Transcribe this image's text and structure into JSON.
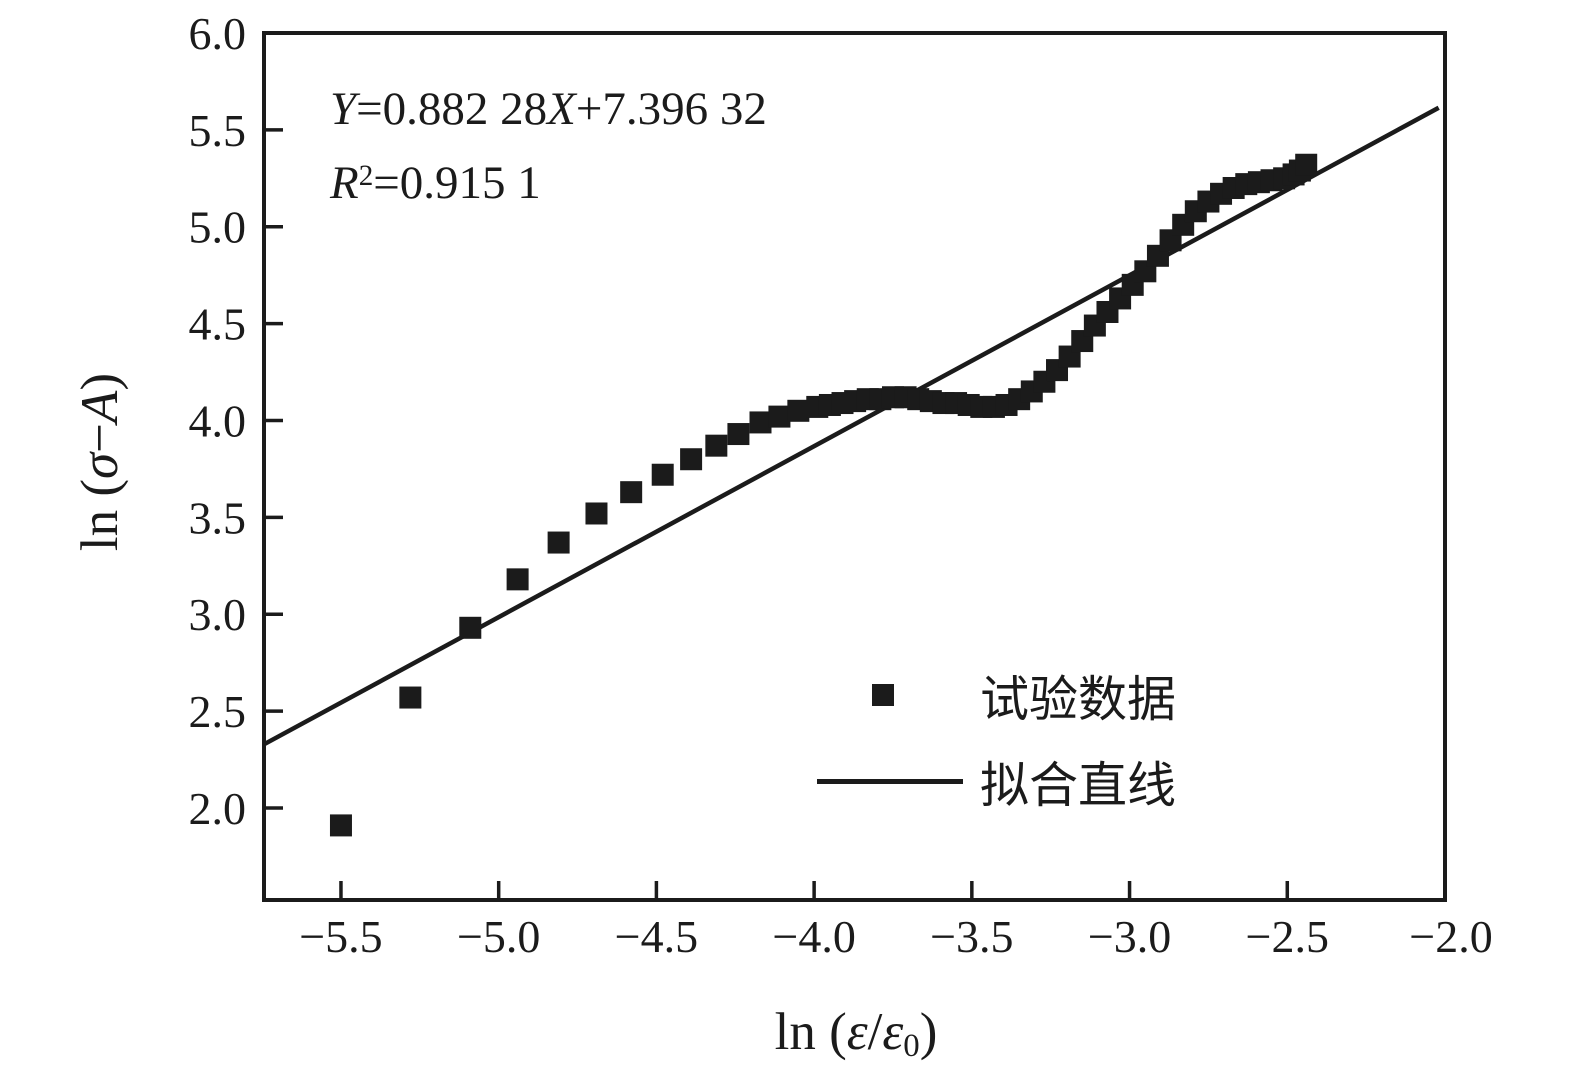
{
  "figure": {
    "background_color": "#ffffff",
    "ink_color": "#1b1b1b"
  },
  "annotation": {
    "equation_parts": [
      "Y",
      "=0.882 28",
      "X",
      "+7.396 32"
    ],
    "r2_parts": [
      "R",
      "2",
      "=0.915 1"
    ]
  },
  "axis_labels": {
    "y_parts": [
      "ln (",
      "σ",
      "−",
      "A",
      ")"
    ],
    "x_parts": [
      "ln (",
      "ε",
      "/",
      "ε",
      "0",
      ")"
    ]
  },
  "legend": {
    "items": [
      {
        "marker": "square",
        "label": "试验数据"
      },
      {
        "marker": "line",
        "label": "拟合直线"
      }
    ]
  },
  "chart_data": {
    "type": "scatter",
    "title": "",
    "xlabel": "ln (ε/ε0)",
    "ylabel": "ln (σ−A)",
    "xlim": [
      -5.744,
      -2.0
    ],
    "ylim": [
      1.525,
      6.0
    ],
    "grid": false,
    "legend_position": "inside lower-right",
    "annotation_text": [
      "Y=0.882 28X+7.396 32",
      "R²=0.915 1"
    ],
    "x_ticks": [
      -5.5,
      -5.0,
      -4.5,
      -4.0,
      -3.5,
      -3.0,
      -2.5,
      -2.0
    ],
    "x_tick_labels": [
      "−5.5",
      "−5.0",
      "−4.5",
      "−4.0",
      "−3.5",
      "−3.0",
      "−2.5",
      "−2.0"
    ],
    "y_ticks": [
      2.0,
      2.5,
      3.0,
      3.5,
      4.0,
      4.5,
      5.0,
      5.5,
      6.0
    ],
    "y_tick_labels": [
      "2.0",
      "2.5",
      "3.0",
      "3.5",
      "4.0",
      "4.5",
      "5.0",
      "5.5",
      "6.0"
    ],
    "series": [
      {
        "name": "试验数据",
        "type": "scatter",
        "marker": "square",
        "marker_size_px": 22,
        "points": [
          [
            -5.5,
            1.91
          ],
          [
            -5.28,
            2.57
          ],
          [
            -5.09,
            2.93
          ],
          [
            -4.94,
            3.18
          ],
          [
            -4.81,
            3.37
          ],
          [
            -4.69,
            3.52
          ],
          [
            -4.58,
            3.63
          ],
          [
            -4.48,
            3.72
          ],
          [
            -4.39,
            3.8
          ],
          [
            -4.31,
            3.87
          ],
          [
            -4.24,
            3.93
          ],
          [
            -4.17,
            3.99
          ],
          [
            -4.11,
            4.02
          ],
          [
            -4.05,
            4.05
          ],
          [
            -3.99,
            4.07
          ],
          [
            -3.95,
            4.08
          ],
          [
            -3.91,
            4.09
          ],
          [
            -3.87,
            4.1
          ],
          [
            -3.83,
            4.11
          ],
          [
            -3.79,
            4.11
          ],
          [
            -3.75,
            4.12
          ],
          [
            -3.71,
            4.12
          ],
          [
            -3.67,
            4.11
          ],
          [
            -3.63,
            4.1
          ],
          [
            -3.59,
            4.09
          ],
          [
            -3.55,
            4.09
          ],
          [
            -3.51,
            4.08
          ],
          [
            -3.47,
            4.07
          ],
          [
            -3.43,
            4.07
          ],
          [
            -3.39,
            4.08
          ],
          [
            -3.35,
            4.11
          ],
          [
            -3.31,
            4.15
          ],
          [
            -3.27,
            4.2
          ],
          [
            -3.23,
            4.26
          ],
          [
            -3.19,
            4.33
          ],
          [
            -3.15,
            4.41
          ],
          [
            -3.11,
            4.49
          ],
          [
            -3.07,
            4.56
          ],
          [
            -3.03,
            4.63
          ],
          [
            -2.99,
            4.7
          ],
          [
            -2.95,
            4.77
          ],
          [
            -2.91,
            4.85
          ],
          [
            -2.87,
            4.93
          ],
          [
            -2.83,
            5.01
          ],
          [
            -2.79,
            5.08
          ],
          [
            -2.75,
            5.13
          ],
          [
            -2.71,
            5.17
          ],
          [
            -2.67,
            5.2
          ],
          [
            -2.63,
            5.22
          ],
          [
            -2.59,
            5.23
          ],
          [
            -2.55,
            5.24
          ],
          [
            -2.51,
            5.25
          ],
          [
            -2.48,
            5.27
          ],
          [
            -2.46,
            5.29
          ],
          [
            -2.44,
            5.32
          ]
        ]
      },
      {
        "name": "拟合直线",
        "type": "line",
        "fit": {
          "slope": 0.88228,
          "intercept": 7.39632,
          "x_start": -5.744,
          "x_end": -2.02
        }
      }
    ]
  }
}
